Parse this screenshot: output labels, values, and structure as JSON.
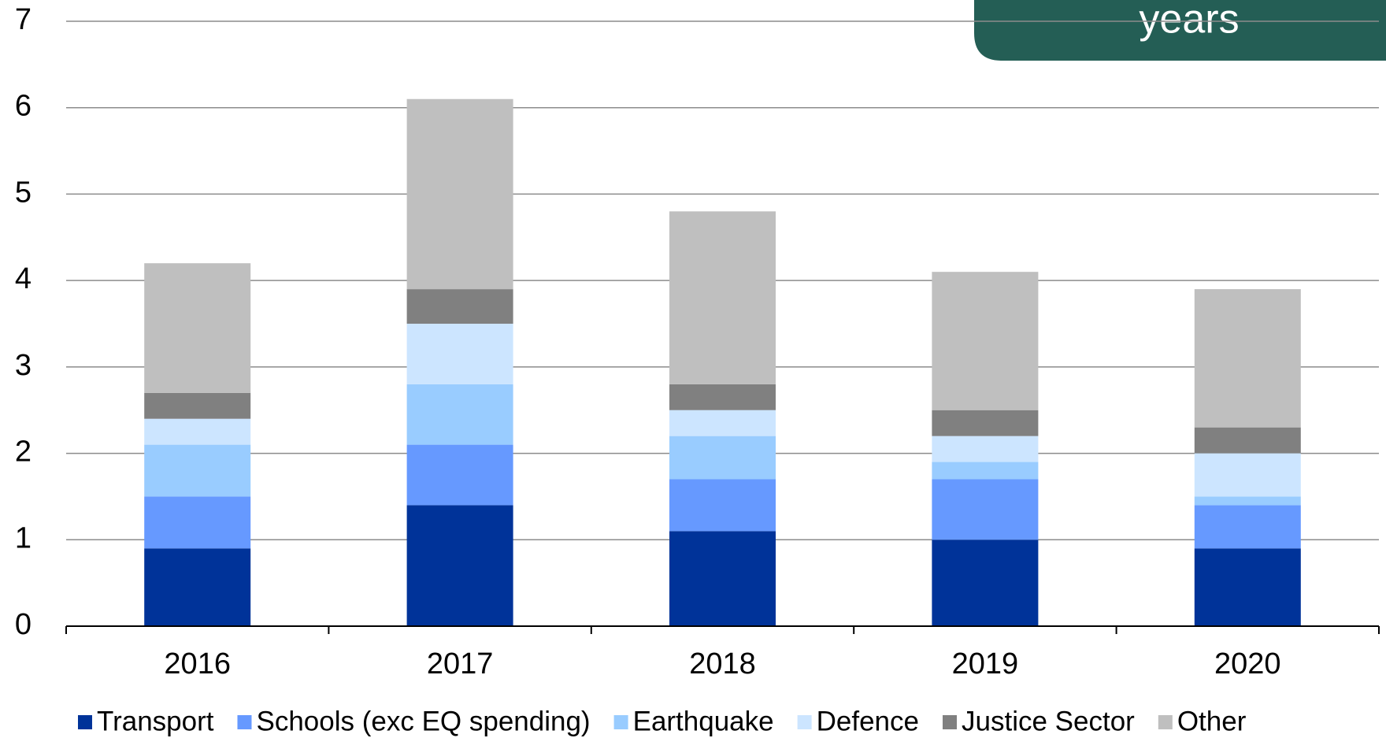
{
  "chart_data": {
    "type": "stacked_bar",
    "annotation": "years",
    "categories": [
      "2016",
      "2017",
      "2018",
      "2019",
      "2020"
    ],
    "series": [
      {
        "name": "Transport",
        "color": "#003399",
        "values": [
          0.9,
          1.4,
          1.1,
          1.0,
          0.9
        ]
      },
      {
        "name": "Schools (exc EQ spending)",
        "color": "#6699ff",
        "values": [
          0.6,
          0.7,
          0.6,
          0.7,
          0.5
        ]
      },
      {
        "name": "Earthquake",
        "color": "#99ccff",
        "values": [
          0.6,
          0.7,
          0.5,
          0.2,
          0.1
        ]
      },
      {
        "name": "Defence",
        "color": "#cce5ff",
        "values": [
          0.3,
          0.7,
          0.3,
          0.3,
          0.5
        ]
      },
      {
        "name": "Justice Sector",
        "color": "#808080",
        "values": [
          0.3,
          0.4,
          0.3,
          0.3,
          0.3
        ]
      },
      {
        "name": "Other",
        "color": "#bfbfbf",
        "values": [
          1.5,
          2.2,
          2.0,
          1.6,
          1.6
        ]
      }
    ],
    "ylim": [
      0,
      7
    ],
    "yticks": [
      0,
      1,
      2,
      3,
      4,
      5,
      6,
      7
    ],
    "grid": true,
    "legend": "bottom"
  }
}
